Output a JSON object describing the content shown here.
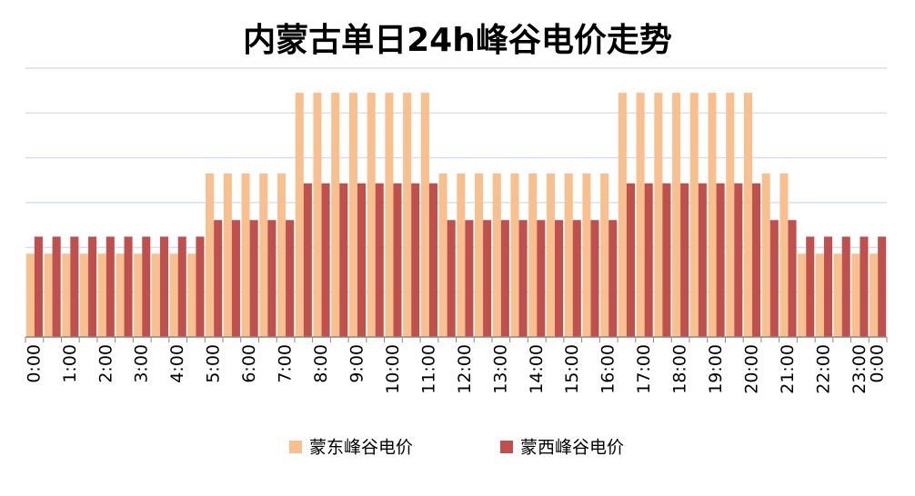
{
  "chart_data": {
    "type": "bar",
    "title": "内蒙古单日24h峰谷电价走势",
    "categories": [
      "0:00",
      null,
      "1:00",
      null,
      "2:00",
      null,
      "3:00",
      null,
      "4:00",
      null,
      "5:00",
      null,
      "6:00",
      null,
      "7:00",
      null,
      "8:00",
      null,
      "9:00",
      null,
      "10:00",
      null,
      "11:00",
      null,
      "12:00",
      null,
      "13:00",
      null,
      "14:00",
      null,
      "15:00",
      null,
      "16:00",
      null,
      "17:00",
      null,
      "18:00",
      null,
      "19:00",
      null,
      "20:00",
      null,
      "21:00",
      null,
      "22:00",
      null,
      "23:00",
      "0:00"
    ],
    "series": [
      {
        "name": "蒙东峰谷电价",
        "color": "#f9c08f",
        "values": [
          1.86,
          1.86,
          1.86,
          1.86,
          1.86,
          1.86,
          1.86,
          1.86,
          1.86,
          1.86,
          3.65,
          3.65,
          3.65,
          3.65,
          3.65,
          5.45,
          5.45,
          5.45,
          5.45,
          5.45,
          5.45,
          5.45,
          5.45,
          3.65,
          3.65,
          3.65,
          3.65,
          3.65,
          3.65,
          3.65,
          3.65,
          3.65,
          3.65,
          5.45,
          5.45,
          5.45,
          5.45,
          5.45,
          5.45,
          5.45,
          5.45,
          3.65,
          3.65,
          1.86,
          1.86,
          1.86,
          1.86,
          1.86
        ]
      },
      {
        "name": "蒙西峰谷电价",
        "color": "#c0504d",
        "values": [
          2.24,
          2.24,
          2.24,
          2.24,
          2.24,
          2.24,
          2.24,
          2.24,
          2.24,
          2.24,
          2.61,
          2.61,
          2.61,
          2.61,
          2.61,
          3.43,
          3.43,
          3.43,
          3.43,
          3.43,
          3.43,
          3.43,
          3.43,
          2.61,
          2.61,
          2.61,
          2.61,
          2.61,
          2.61,
          2.61,
          2.61,
          2.61,
          2.61,
          3.43,
          3.43,
          3.43,
          3.43,
          3.43,
          3.43,
          3.43,
          3.43,
          2.61,
          2.61,
          2.24,
          2.24,
          2.24,
          2.24,
          2.24
        ]
      }
    ],
    "ylim": [
      0,
      6
    ],
    "yticks": [
      0,
      1,
      2,
      3,
      4,
      5,
      6
    ],
    "grid": true,
    "legend": "bottom"
  }
}
